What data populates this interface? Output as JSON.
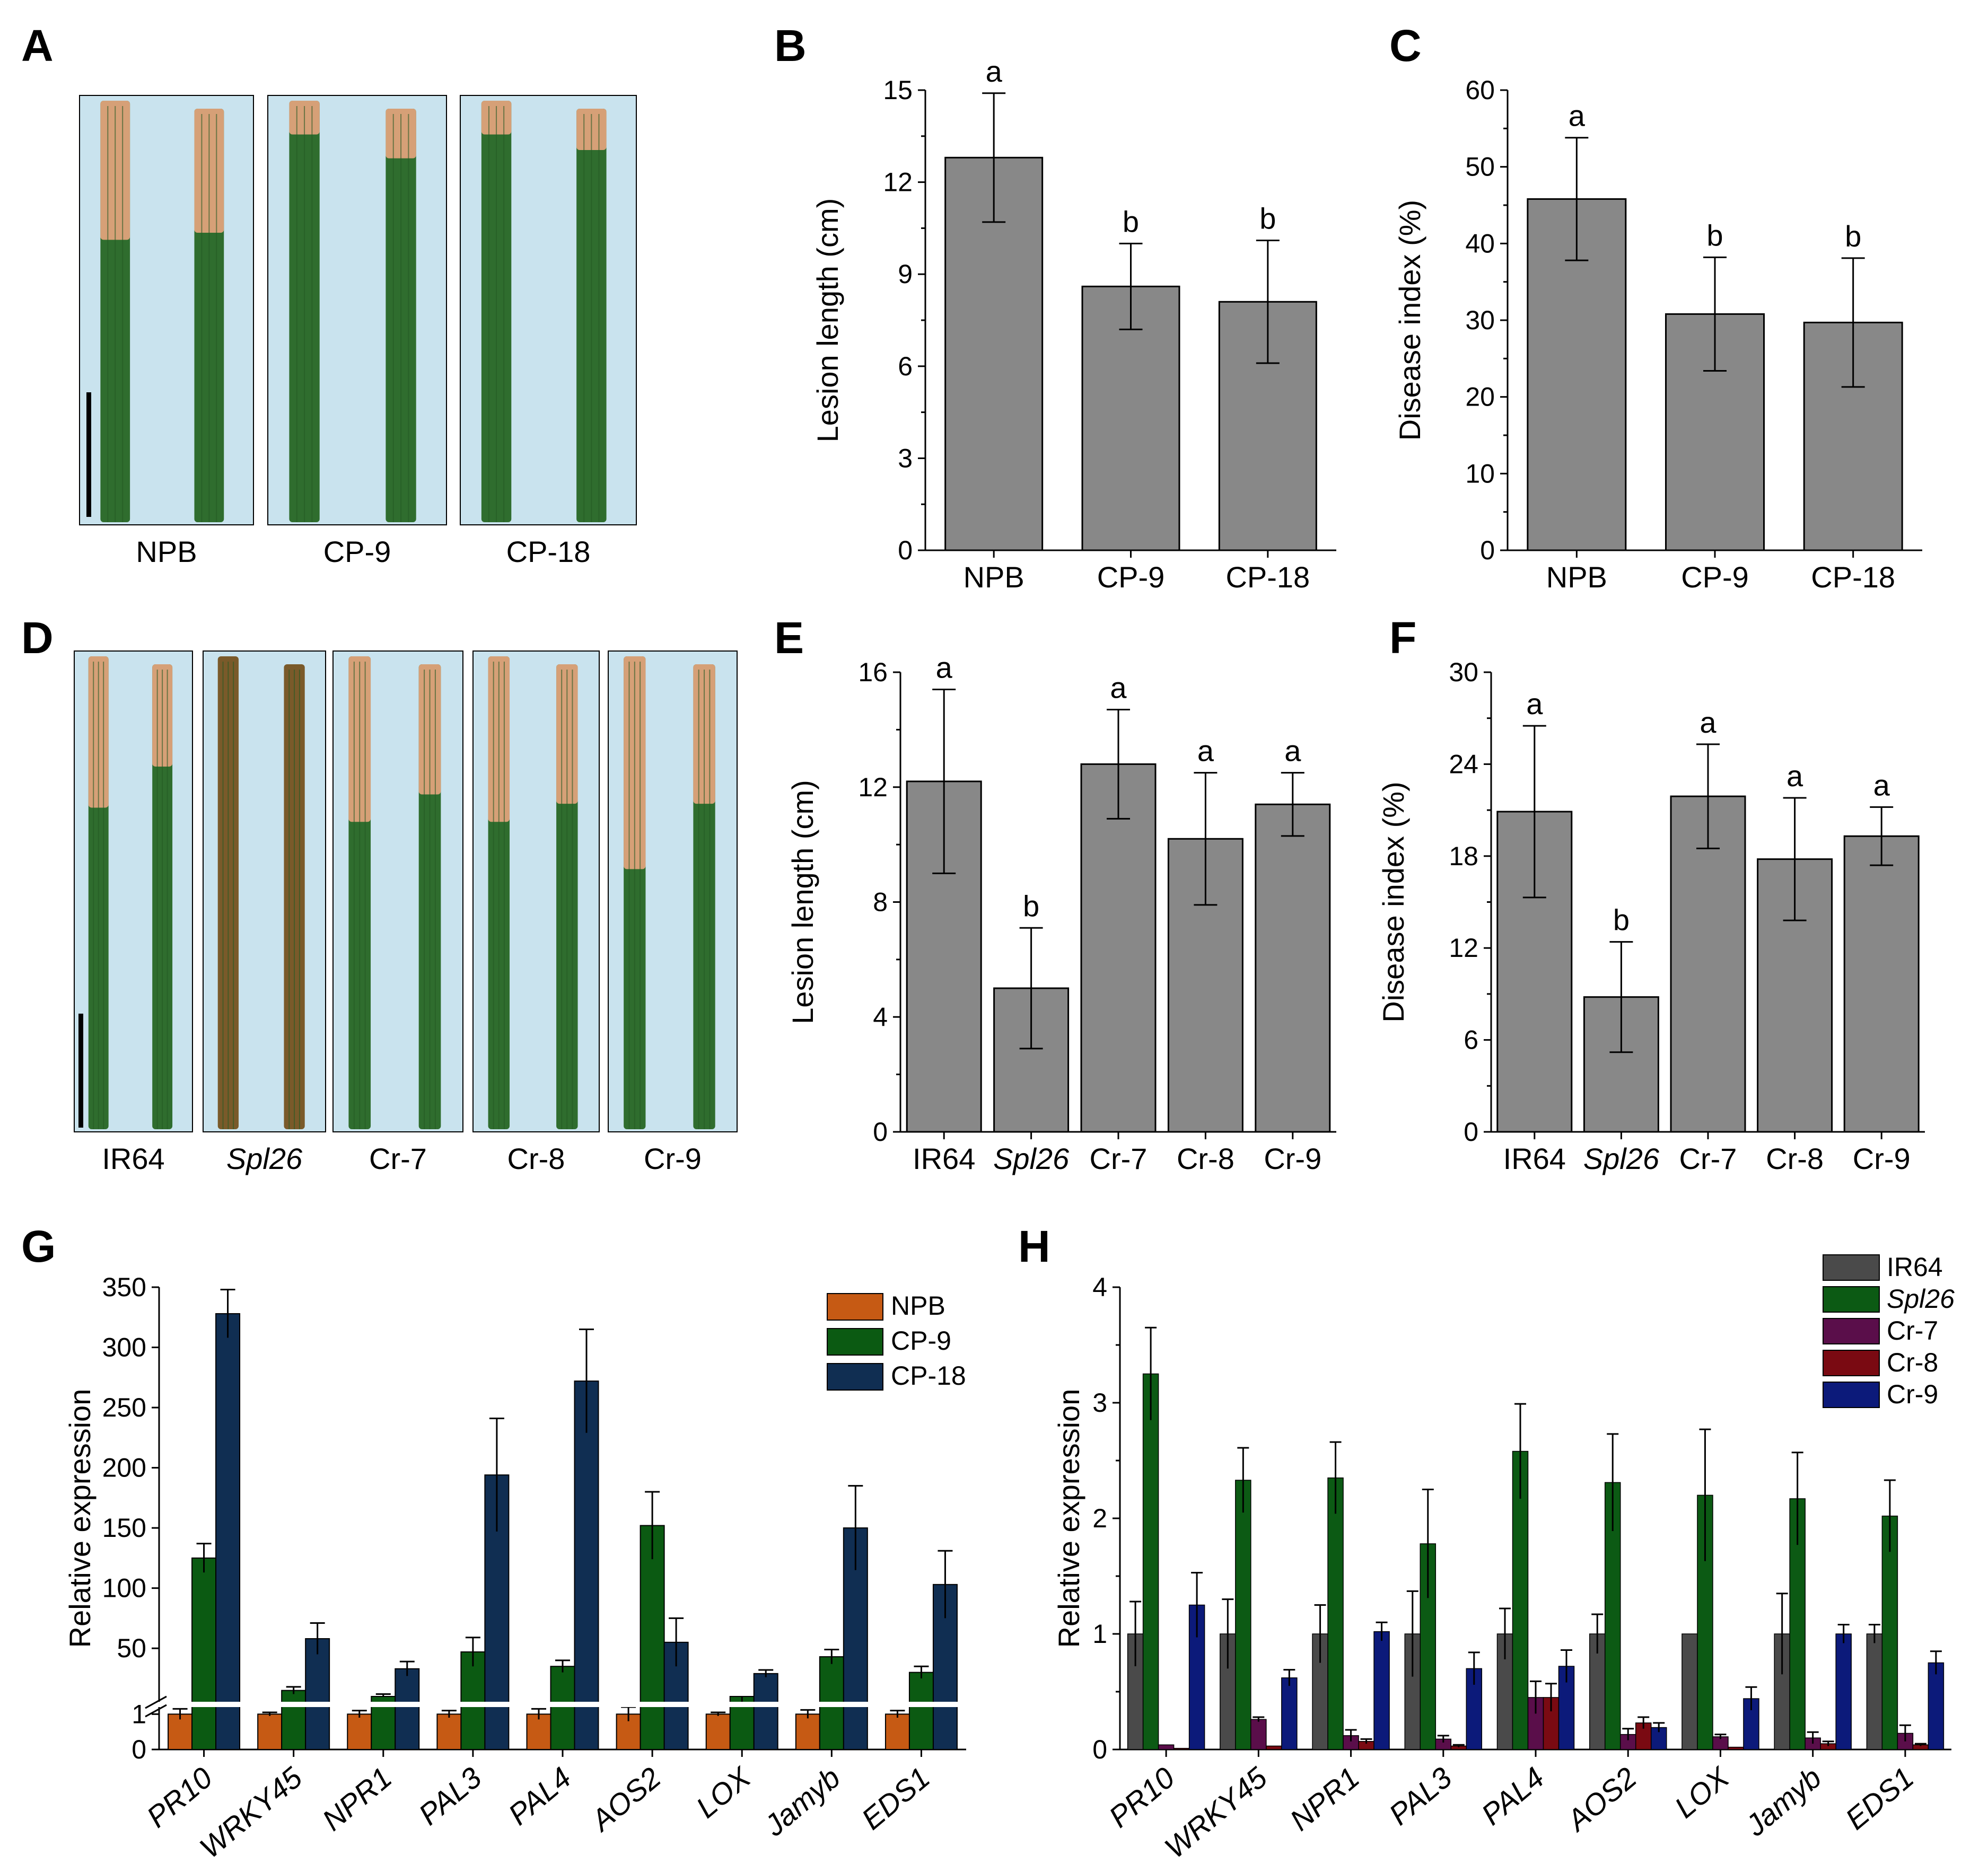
{
  "panels": {
    "A": {
      "letter": "A",
      "labels": [
        "NPB",
        "CP-9",
        "CP-18"
      ]
    },
    "B": {
      "letter": "B"
    },
    "C": {
      "letter": "C"
    },
    "D": {
      "letter": "D",
      "labels": [
        "IR64",
        "Spl26",
        "Cr-7",
        "Cr-8",
        "Cr-9"
      ]
    },
    "E": {
      "letter": "E"
    },
    "F": {
      "letter": "F"
    },
    "G": {
      "letter": "G"
    },
    "H": {
      "letter": "H"
    }
  },
  "colors": {
    "bar_gray": "#888888",
    "leaf_bg": "#c9e3ee",
    "leaf_green": "#2f6d2e",
    "leaf_lesion": "#d6a077",
    "npb": "#c65a14",
    "cp9": "#0b5a12",
    "cp18": "#102e52",
    "ir64": "#4a4a4a",
    "spl26": "#0c5a14",
    "cr7": "#5a0e4a",
    "cr8": "#7a0a12",
    "cr9": "#0c1a7a"
  },
  "chart_data": [
    {
      "panel": "B",
      "type": "bar",
      "categories": [
        "NPB",
        "CP-9",
        "CP-18"
      ],
      "values": [
        12.8,
        8.6,
        8.1
      ],
      "errors": [
        2.1,
        1.4,
        2.0
      ],
      "letters": [
        "a",
        "b",
        "b"
      ],
      "ylabel": "Lesion length (cm)",
      "ylim": [
        0,
        15
      ],
      "yticks": [
        0,
        3,
        6,
        9,
        12,
        15
      ]
    },
    {
      "panel": "C",
      "type": "bar",
      "categories": [
        "NPB",
        "CP-9",
        "CP-18"
      ],
      "values": [
        45.8,
        30.8,
        29.7
      ],
      "errors": [
        8.0,
        7.4,
        8.4
      ],
      "letters": [
        "a",
        "b",
        "b"
      ],
      "ylabel": "Disease index (%)",
      "ylim": [
        0,
        60
      ],
      "yticks": [
        0,
        10,
        20,
        30,
        40,
        50,
        60
      ]
    },
    {
      "panel": "E",
      "type": "bar",
      "categories": [
        "IR64",
        "Spl26",
        "Cr-7",
        "Cr-8",
        "Cr-9"
      ],
      "italic": [
        false,
        true,
        false,
        false,
        false
      ],
      "values": [
        12.2,
        5.0,
        12.8,
        10.2,
        11.4
      ],
      "errors": [
        3.2,
        2.1,
        1.9,
        2.3,
        1.1
      ],
      "letters": [
        "a",
        "b",
        "a",
        "a",
        "a"
      ],
      "ylabel": "Lesion length (cm)",
      "ylim": [
        0,
        16
      ],
      "yticks": [
        0,
        4,
        8,
        12,
        16
      ]
    },
    {
      "panel": "F",
      "type": "bar",
      "categories": [
        "IR64",
        "Spl26",
        "Cr-7",
        "Cr-8",
        "Cr-9"
      ],
      "italic": [
        false,
        true,
        false,
        false,
        false
      ],
      "values": [
        20.9,
        8.8,
        21.9,
        17.8,
        19.3
      ],
      "errors": [
        5.6,
        3.6,
        3.4,
        4.0,
        1.9
      ],
      "letters": [
        "a",
        "b",
        "a",
        "a",
        "a"
      ],
      "ylabel": "Disease index (%)",
      "ylim": [
        0,
        30
      ],
      "yticks": [
        0,
        6,
        12,
        18,
        24,
        30
      ]
    },
    {
      "panel": "G",
      "type": "bar",
      "categories": [
        "PR10",
        "WRKY45",
        "NPR1",
        "PAL3",
        "PAL4",
        "AOS2",
        "LOX",
        "Jamyb",
        "EDS1"
      ],
      "ylabel": "Relative expression",
      "axis_break": true,
      "lower_ylim": [
        0,
        1.5
      ],
      "lower_yticks": [
        0,
        1
      ],
      "upper_ylim": [
        10,
        350
      ],
      "upper_yticks": [
        50,
        100,
        150,
        200,
        250,
        300,
        350
      ],
      "series": [
        {
          "name": "NPB",
          "values": [
            1,
            1,
            1,
            1,
            1,
            1,
            1,
            1,
            1
          ],
          "errors": [
            0.15,
            0.05,
            0.1,
            0.1,
            0.15,
            0.2,
            0.05,
            0.12,
            0.1
          ]
        },
        {
          "name": "CP-9",
          "values": [
            125,
            15,
            10,
            47,
            35,
            152,
            2,
            43,
            30
          ],
          "errors": [
            12,
            3,
            2,
            12,
            5,
            28,
            0.5,
            6,
            5
          ]
        },
        {
          "name": "CP-18",
          "values": [
            328,
            58,
            33,
            194,
            272,
            55,
            29,
            150,
            103
          ],
          "errors": [
            20,
            13,
            6,
            47,
            43,
            20,
            3,
            35,
            28
          ]
        }
      ]
    },
    {
      "panel": "H",
      "type": "bar",
      "categories": [
        "PR10",
        "WRKY45",
        "NPR1",
        "PAL3",
        "PAL4",
        "AOS2",
        "LOX",
        "Jamyb",
        "EDS1"
      ],
      "ylabel": "Relative expression",
      "ylim": [
        0,
        4
      ],
      "yticks": [
        0,
        1,
        2,
        3,
        4
      ],
      "series": [
        {
          "name": "IR64",
          "values": [
            1.0,
            1.0,
            1.0,
            1.0,
            1.0,
            1.0,
            1.0,
            1.0,
            1.0
          ],
          "errors": [
            0.28,
            0.3,
            0.25,
            0.37,
            0.22,
            0.17,
            0.0,
            0.35,
            0.08
          ]
        },
        {
          "name": "Spl26",
          "values": [
            3.25,
            2.33,
            2.35,
            1.78,
            2.58,
            2.31,
            2.2,
            2.17,
            2.02
          ],
          "errors": [
            0.4,
            0.28,
            0.31,
            0.47,
            0.41,
            0.42,
            0.57,
            0.4,
            0.31
          ]
        },
        {
          "name": "Cr-7",
          "values": [
            0.04,
            0.26,
            0.12,
            0.09,
            0.45,
            0.13,
            0.11,
            0.1,
            0.14
          ],
          "errors": [
            0.0,
            0.02,
            0.05,
            0.03,
            0.14,
            0.05,
            0.02,
            0.05,
            0.07
          ]
        },
        {
          "name": "Cr-8",
          "values": [
            0.01,
            0.03,
            0.07,
            0.03,
            0.45,
            0.23,
            0.02,
            0.05,
            0.04
          ],
          "errors": [
            0.0,
            0.0,
            0.02,
            0.01,
            0.12,
            0.05,
            0.0,
            0.02,
            0.01
          ]
        },
        {
          "name": "Cr-9",
          "values": [
            1.25,
            0.62,
            1.02,
            0.7,
            0.72,
            0.19,
            0.44,
            1.0,
            0.75
          ],
          "errors": [
            0.28,
            0.07,
            0.08,
            0.14,
            0.14,
            0.04,
            0.1,
            0.08,
            0.1
          ]
        }
      ]
    }
  ]
}
